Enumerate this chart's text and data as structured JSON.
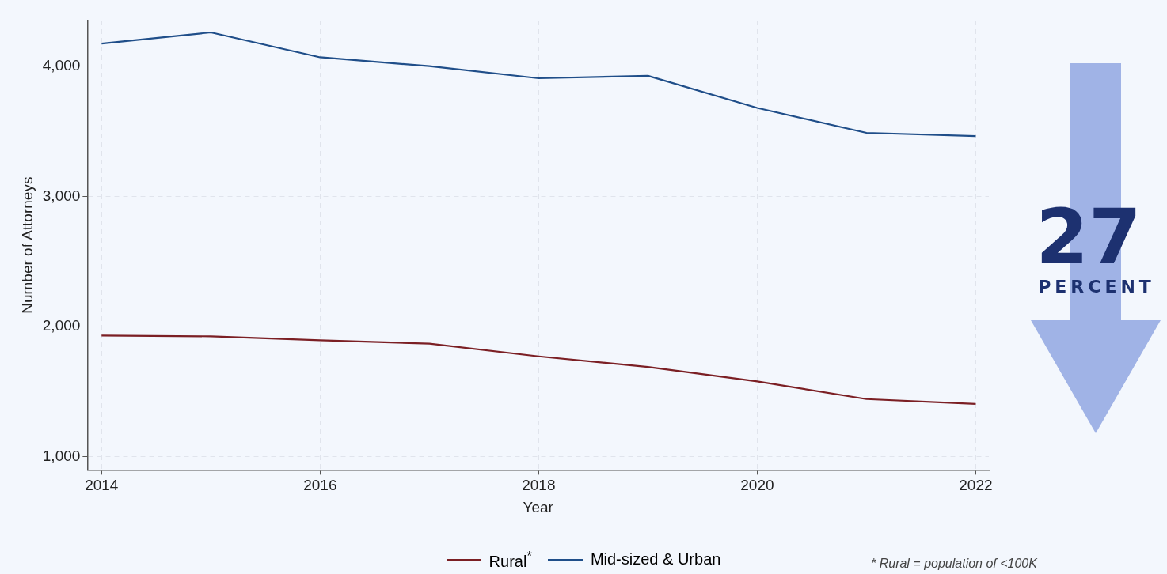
{
  "chart_data": {
    "type": "line",
    "xlabel": "Year",
    "ylabel": "Number of Attorneys",
    "x": [
      2014,
      2015,
      2016,
      2017,
      2018,
      2019,
      2020,
      2021,
      2022
    ],
    "series": [
      {
        "name": "Rural$^{*}$",
        "color": "#7b1f24",
        "values": [
          1932,
          1926,
          1895,
          1870,
          1772,
          1691,
          1580,
          1444,
          1407
        ]
      },
      {
        "name": "Mid-sized & Urban",
        "color": "#1f4e89",
        "values": [
          4173,
          4259,
          4068,
          4000,
          3907,
          3926,
          3679,
          3488,
          3463
        ]
      }
    ],
    "xlim": [
      2013.87,
      2022.12
    ],
    "xticks": [
      2014,
      2016,
      2018,
      2020,
      2022
    ],
    "ylim": [
      900,
      4350
    ],
    "yticks": [
      {
        "value": 1000,
        "label": "1,000"
      },
      {
        "value": 2000,
        "label": "2,000"
      },
      {
        "value": 3000,
        "label": "3,000"
      },
      {
        "value": 4000,
        "label": "4,000"
      }
    ],
    "grid": true,
    "legend": "bottom",
    "line_style": "solid",
    "marker": "none",
    "annotations": [
      "27",
      "PERCENT",
      "* Rural = population  of <100K"
    ]
  }
}
